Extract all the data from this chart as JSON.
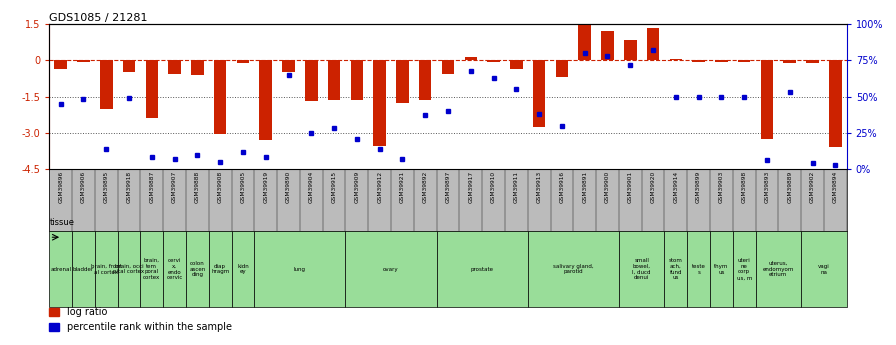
{
  "title": "GDS1085 / 21281",
  "samples": [
    "GSM39896",
    "GSM39906",
    "GSM39895",
    "GSM39918",
    "GSM39887",
    "GSM39907",
    "GSM39888",
    "GSM39908",
    "GSM39905",
    "GSM39919",
    "GSM39890",
    "GSM39904",
    "GSM39915",
    "GSM39909",
    "GSM39912",
    "GSM39921",
    "GSM39892",
    "GSM39897",
    "GSM39917",
    "GSM39910",
    "GSM39911",
    "GSM39913",
    "GSM39916",
    "GSM39891",
    "GSM39900",
    "GSM39901",
    "GSM39920",
    "GSM39914",
    "GSM39899",
    "GSM39903",
    "GSM39898",
    "GSM39893",
    "GSM39889",
    "GSM39902",
    "GSM39894"
  ],
  "log_ratio": [
    -0.35,
    -0.05,
    -2.0,
    -0.5,
    -2.4,
    -0.55,
    -0.6,
    -3.05,
    -0.1,
    -3.3,
    -0.5,
    -1.7,
    -1.65,
    -1.65,
    -3.55,
    -1.75,
    -1.65,
    -0.55,
    0.15,
    -0.05,
    -0.35,
    -2.75,
    -0.7,
    1.5,
    1.2,
    0.85,
    1.35,
    0.05,
    -0.05,
    -0.05,
    -0.05,
    -3.25,
    -0.1,
    -0.1,
    -3.6
  ],
  "percentile": [
    45,
    48,
    14,
    49,
    8,
    7,
    10,
    5,
    12,
    8,
    65,
    25,
    28,
    21,
    14,
    7,
    37,
    40,
    68,
    63,
    55,
    38,
    30,
    80,
    78,
    72,
    82,
    50,
    50,
    50,
    50,
    6,
    53,
    4,
    3
  ],
  "tissues": [
    {
      "label": "adrenal",
      "start": 0,
      "end": 1
    },
    {
      "label": "bladder",
      "start": 1,
      "end": 2
    },
    {
      "label": "brain, front\nal cortex",
      "start": 2,
      "end": 3
    },
    {
      "label": "brain, occi\npital cortex",
      "start": 3,
      "end": 4
    },
    {
      "label": "brain,\ntem\nporal\ncortex",
      "start": 4,
      "end": 5
    },
    {
      "label": "cervi\nx,\nendo\ncervic",
      "start": 5,
      "end": 6
    },
    {
      "label": "colon\nascen\nding",
      "start": 6,
      "end": 7
    },
    {
      "label": "diap\nhragm",
      "start": 7,
      "end": 8
    },
    {
      "label": "kidn\ney",
      "start": 8,
      "end": 9
    },
    {
      "label": "lung",
      "start": 9,
      "end": 13
    },
    {
      "label": "ovary",
      "start": 13,
      "end": 17
    },
    {
      "label": "prostate",
      "start": 17,
      "end": 21
    },
    {
      "label": "salivary gland,\nparotid",
      "start": 21,
      "end": 25
    },
    {
      "label": "small\nbowel,\nl, ducd\ndenui",
      "start": 25,
      "end": 27
    },
    {
      "label": "stom\nach,\nfund\nus",
      "start": 27,
      "end": 28
    },
    {
      "label": "teste\ns",
      "start": 28,
      "end": 29
    },
    {
      "label": "thym\nus",
      "start": 29,
      "end": 30
    },
    {
      "label": "uteri\nne\ncorp\nus, m",
      "start": 30,
      "end": 31
    },
    {
      "label": "uterus,\nendomyom\netrium",
      "start": 31,
      "end": 33
    },
    {
      "label": "vagi\nna",
      "start": 33,
      "end": 35
    }
  ],
  "ylim": [
    -4.5,
    1.5
  ],
  "yticks_left": [
    -4.5,
    -3.0,
    -1.5,
    0.0,
    1.5
  ],
  "yticks_right": [
    0,
    25,
    50,
    75,
    100
  ],
  "bar_color": "#cc2200",
  "dot_color": "#0000cc",
  "hline_color": "#cc2200",
  "dotted_color": "#555555",
  "tissue_color": "#99dd99",
  "gsm_bg_color": "#bbbbbb",
  "background_color": "#ffffff"
}
